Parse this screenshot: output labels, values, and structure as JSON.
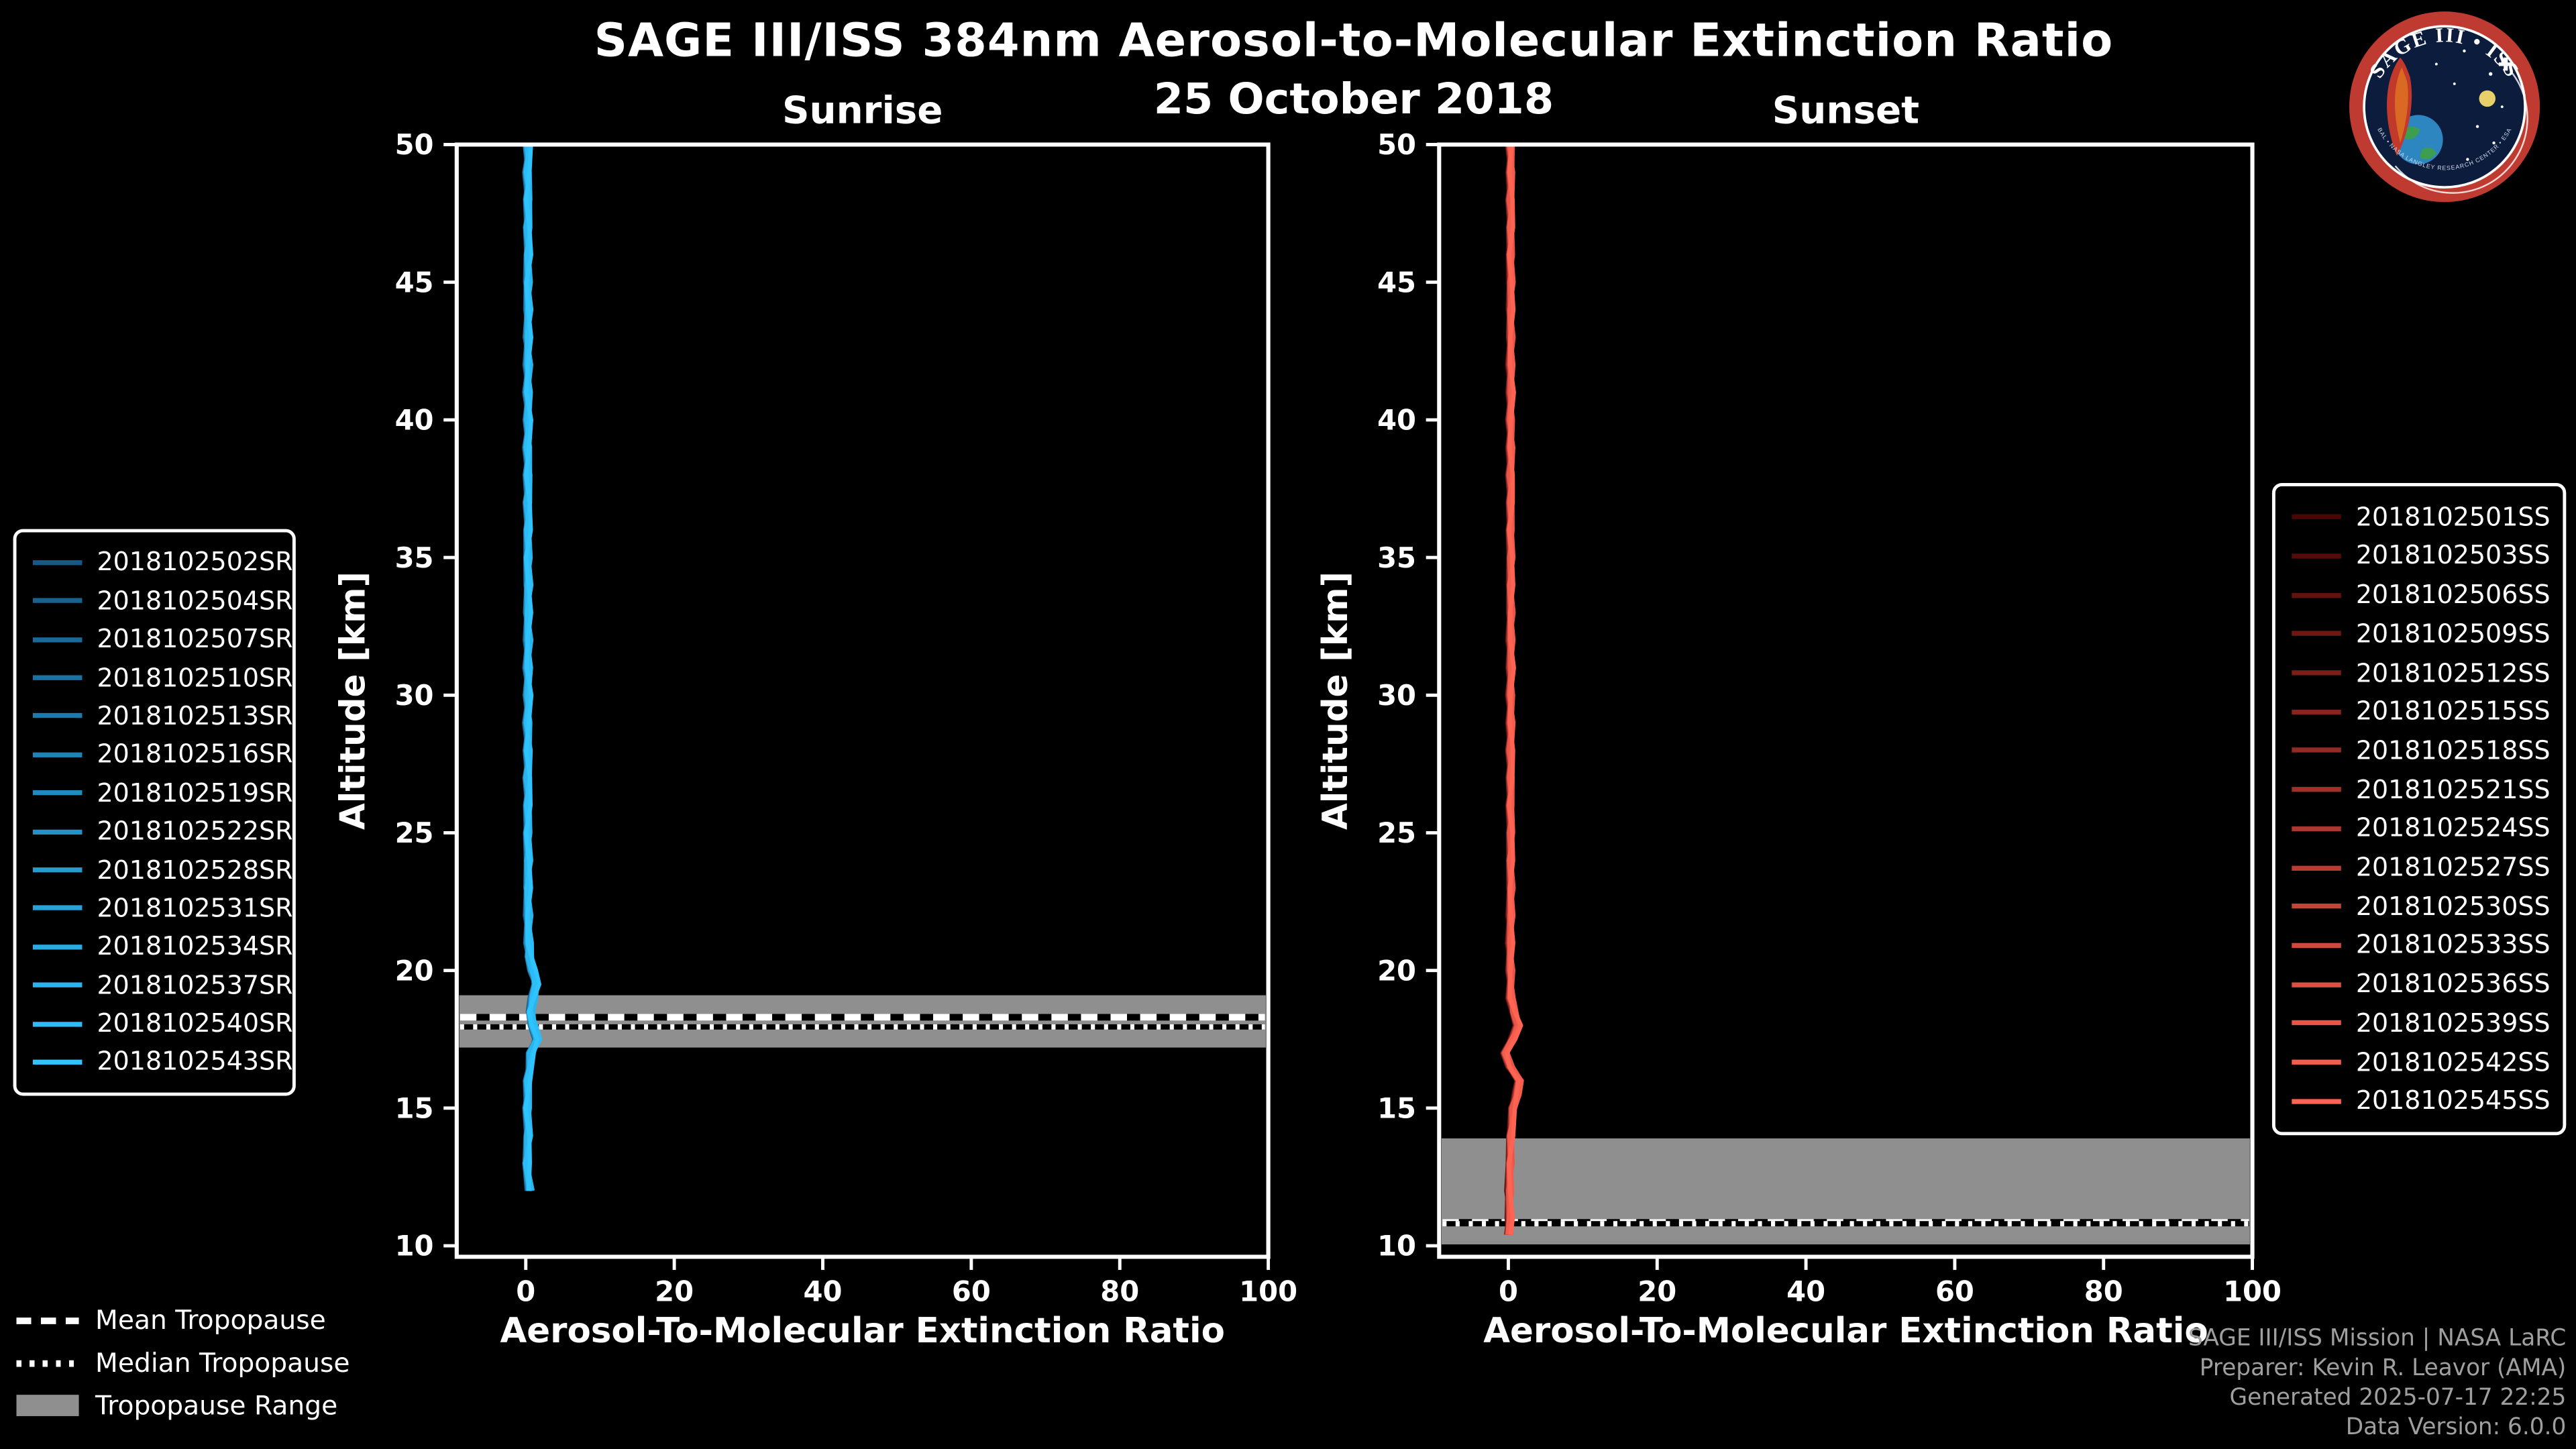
{
  "header": {
    "title": "SAGE III/ISS 384nm Aerosol-to-Molecular Extinction Ratio",
    "date": "25 October 2018"
  },
  "logo": {
    "title_text": "SAGE III • ISS",
    "ring_text": "BAL • NASA LANGLEY RESEARCH CENTER • ESA"
  },
  "legends": {
    "tropopause": [
      {
        "label": "Mean Tropopause",
        "style": "dashed"
      },
      {
        "label": "Median Tropopause",
        "style": "dotted"
      },
      {
        "label": "Tropopause Range",
        "style": "patch"
      }
    ]
  },
  "credits": {
    "lines": [
      "SAGE III/ISS Mission | NASA LaRC",
      "Preparer: Kevin R. Leavor (AMA)",
      "Generated 2025-07-17 22:25",
      "Data Version: 6.0.0"
    ]
  },
  "colors": {
    "background": "#000000",
    "foreground": "#ffffff",
    "tropopause_band": "#8f8f8f",
    "credit_text": "#9f9f9f",
    "sunrise_start": "#155a86",
    "sunrise_end": "#2fc4ff",
    "sunset_start": "#4a0505",
    "sunset_end": "#ff6352"
  },
  "chart_data": {
    "type": "line",
    "title": "SAGE III/ISS 384nm Aerosol-to-Molecular Extinction Ratio",
    "subtitle": "25 October 2018",
    "grid": false,
    "panels": [
      {
        "id": "sunrise",
        "title": "Sunrise",
        "xlabel": "Aerosol-To-Molecular Extinction Ratio",
        "ylabel": "Altitude [km]",
        "xlim": [
          -9.3,
          100
        ],
        "ylim": [
          9.6,
          50
        ],
        "xticks": [
          0,
          20,
          40,
          60,
          80,
          100
        ],
        "yticks": [
          10,
          15,
          20,
          25,
          30,
          35,
          40,
          45,
          50
        ],
        "series_color_start": "#155a86",
        "series_color_end": "#2fc4ff",
        "series": [
          "2018102502SR",
          "2018102504SR",
          "2018102507SR",
          "2018102510SR",
          "2018102513SR",
          "2018102516SR",
          "2018102519SR",
          "2018102522SR",
          "2018102528SR",
          "2018102531SR",
          "2018102534SR",
          "2018102537SR",
          "2018102540SR",
          "2018102543SR"
        ],
        "tropopause": {
          "mean_km": 18.3,
          "median_km": 17.95,
          "range_km": [
            17.2,
            19.1
          ]
        },
        "profile": {
          "spread": 0.35,
          "altitude_km": [
            12,
            13,
            14,
            15,
            16,
            17,
            17.5,
            18,
            18.5,
            19,
            19.5,
            20,
            20.5,
            21,
            22,
            23,
            24,
            25,
            26,
            27,
            28,
            29,
            30,
            31,
            32,
            33,
            34,
            35,
            36,
            37,
            38,
            39,
            40,
            41,
            42,
            43,
            44,
            45,
            46,
            47,
            48,
            49,
            50
          ],
          "ratio": [
            0.5,
            0.1,
            0.3,
            0.2,
            0.3,
            0.7,
            1.5,
            1.0,
            0.6,
            1.0,
            1.4,
            0.9,
            0.5,
            0.35,
            0.3,
            0.25,
            0.3,
            0.25,
            0.3,
            0.25,
            0.3,
            0.25,
            0.3,
            0.25,
            0.3,
            0.25,
            0.3,
            0.25,
            0.3,
            0.25,
            0.3,
            0.25,
            0.3,
            0.25,
            0.3,
            0.25,
            0.3,
            0.25,
            0.3,
            0.25,
            0.3,
            0.25,
            0.3
          ]
        }
      },
      {
        "id": "sunset",
        "title": "Sunset",
        "xlabel": "Aerosol-To-Molecular Extinction Ratio",
        "ylabel": "Altitude [km]",
        "xlim": [
          -9.3,
          100
        ],
        "ylim": [
          9.6,
          50
        ],
        "xticks": [
          0,
          20,
          40,
          60,
          80,
          100
        ],
        "yticks": [
          10,
          15,
          20,
          25,
          30,
          35,
          40,
          45,
          50
        ],
        "series_color_start": "#4a0505",
        "series_color_end": "#ff6352",
        "series": [
          "2018102501SS",
          "2018102503SS",
          "2018102506SS",
          "2018102509SS",
          "2018102512SS",
          "2018102515SS",
          "2018102518SS",
          "2018102521SS",
          "2018102524SS",
          "2018102527SS",
          "2018102530SS",
          "2018102533SS",
          "2018102536SS",
          "2018102539SS",
          "2018102542SS",
          "2018102545SS"
        ],
        "tropopause": {
          "mean_km": 10.85,
          "median_km": 10.8,
          "range_km": [
            10.05,
            13.9
          ]
        },
        "profile": {
          "spread": 0.3,
          "altitude_km": [
            10.4,
            11,
            12,
            13,
            14,
            15,
            15.5,
            16,
            16.5,
            17,
            17.5,
            18,
            18.5,
            19,
            20,
            21,
            22,
            23,
            24,
            25,
            26,
            27,
            28,
            29,
            30,
            31,
            32,
            33,
            34,
            35,
            36,
            37,
            38,
            39,
            40,
            41,
            42,
            43,
            44,
            45,
            46,
            47,
            48,
            49,
            50
          ],
          "ratio": [
            0.1,
            0.15,
            0.1,
            0.2,
            0.3,
            0.6,
            1.1,
            1.5,
            0.2,
            -0.4,
            0.5,
            1.3,
            0.7,
            0.3,
            0.25,
            0.2,
            0.25,
            0.3,
            0.25,
            0.3,
            0.25,
            0.3,
            0.25,
            0.3,
            0.25,
            0.3,
            0.25,
            0.3,
            0.25,
            0.3,
            0.25,
            0.3,
            0.25,
            0.3,
            0.25,
            0.3,
            0.25,
            0.3,
            0.25,
            0.3,
            0.25,
            0.3,
            0.25,
            0.3,
            0.25
          ]
        }
      }
    ]
  }
}
